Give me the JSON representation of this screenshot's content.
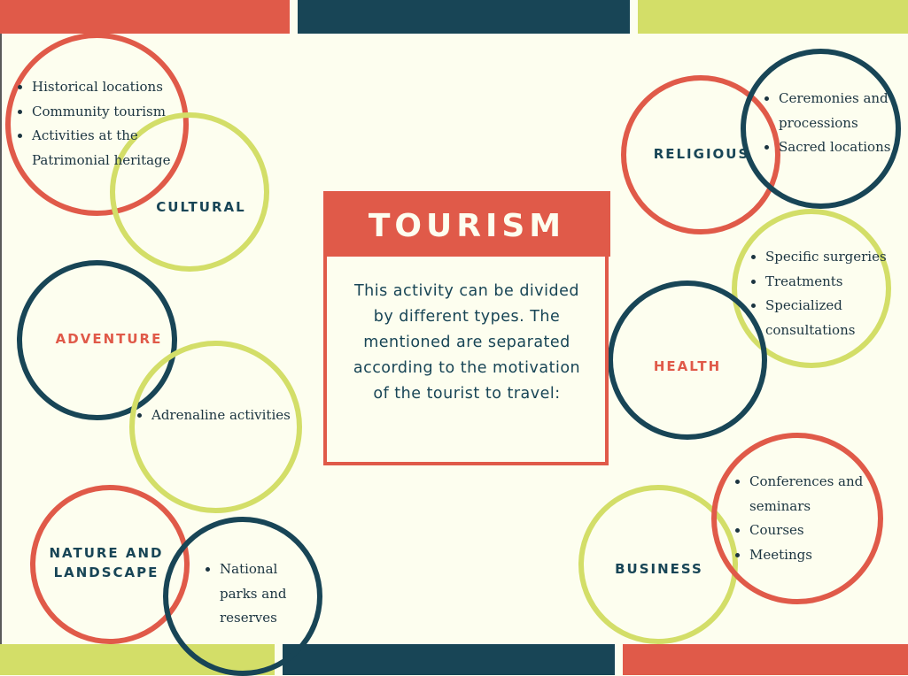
{
  "center": {
    "title": "TOURISM",
    "description": "This activity can be divided by different types. The mentioned are separated according to the motivation of the tourist to travel:"
  },
  "categories": {
    "cultural": {
      "label": "CULTURAL",
      "items": [
        "Historical locations",
        "Community tourism",
        "Activities at the Patrimonial heritage"
      ]
    },
    "adventure": {
      "label": "ADVENTURE",
      "items": [
        "Adrenaline activities"
      ]
    },
    "nature": {
      "label_line1": "NATURE AND",
      "label_line2": "LANDSCAPE",
      "items": [
        "National parks and reserves"
      ]
    },
    "religious": {
      "label": "RELIGIOUS",
      "items": [
        "Ceremonies and processions",
        "Sacred locations"
      ]
    },
    "health": {
      "label": "HEALTH",
      "items": [
        "Specific surgeries",
        "Treatments",
        "Specialized consultations"
      ]
    },
    "business": {
      "label": "BUSINESS",
      "items": [
        "Conferences and seminars",
        "Courses",
        "Meetings"
      ]
    }
  },
  "colors": {
    "red": "#e05a49",
    "navy": "#184556",
    "lime": "#d3de68",
    "background": "#fdfeef"
  }
}
